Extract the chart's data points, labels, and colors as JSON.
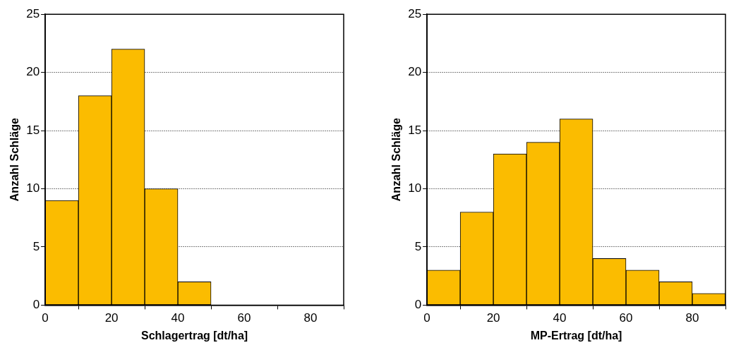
{
  "chart_data": [
    {
      "type": "histogram",
      "xlabel": "Schlagertrag [dt/ha]",
      "ylabel": "Anzahl Schläge",
      "bins": [
        0,
        10,
        20,
        30,
        40,
        50,
        60,
        70,
        80,
        90
      ],
      "values": [
        9,
        18,
        22,
        10,
        2,
        0,
        0,
        0,
        0
      ],
      "color": "#fbbc00",
      "xlim": [
        0,
        90
      ],
      "xticks": [
        0,
        20,
        40,
        60,
        80
      ],
      "ylim": [
        0,
        25
      ],
      "yticks": [
        0,
        5,
        10,
        15,
        20,
        25
      ],
      "grid": "y"
    },
    {
      "type": "histogram",
      "xlabel": "MP-Ertrag [dt/ha]",
      "ylabel": "Anzahl Schläge",
      "bins": [
        0,
        10,
        20,
        30,
        40,
        50,
        60,
        70,
        80,
        90
      ],
      "values": [
        3,
        8,
        13,
        14,
        16,
        4,
        3,
        2,
        1
      ],
      "color": "#fbbc00",
      "xlim": [
        0,
        90
      ],
      "xticks": [
        0,
        20,
        40,
        60,
        80
      ],
      "ylim": [
        0,
        25
      ],
      "yticks": [
        0,
        5,
        10,
        15,
        20,
        25
      ],
      "grid": "y"
    }
  ]
}
